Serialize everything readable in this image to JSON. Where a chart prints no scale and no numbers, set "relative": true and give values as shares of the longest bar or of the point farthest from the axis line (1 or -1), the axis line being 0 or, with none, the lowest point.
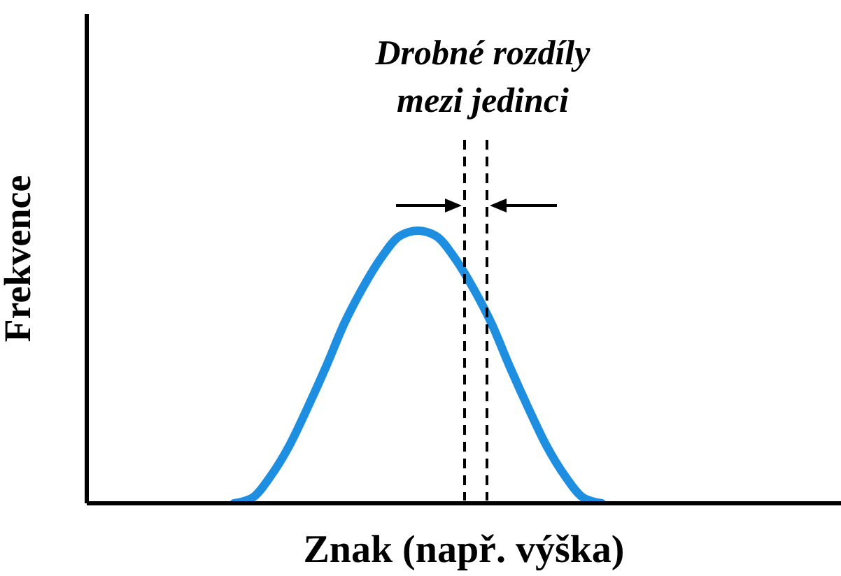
{
  "chart_data": {
    "type": "line",
    "relative": true,
    "xlabel": "Znak (např. výška)",
    "ylabel": "Frekvence",
    "annotations": [
      "Drobné rozdíly mezi jedinci"
    ],
    "categories": [
      null,
      null,
      null,
      null,
      null,
      null,
      null,
      null,
      null,
      null,
      null,
      null,
      null,
      null,
      null,
      null,
      null,
      null,
      null,
      null,
      null,
      null,
      null,
      null,
      null,
      null,
      null,
      null,
      null,
      null,
      null,
      null,
      null,
      null,
      null,
      null,
      null,
      null,
      null,
      null,
      null,
      null
    ],
    "series": [
      {
        "color": "#1e8fe0",
        "values": [
          null,
          null,
          null,
          null,
          null,
          null,
          null,
          null,
          0,
          0.02,
          0.1,
          0.21,
          0.35,
          0.5,
          0.66,
          0.79,
          0.9,
          0.98,
          1,
          0.98,
          0.9,
          0.79,
          0.66,
          0.5,
          0.35,
          0.21,
          0.1,
          0.02,
          0,
          null,
          null,
          null,
          null,
          null,
          null,
          null,
          null,
          null,
          null,
          null,
          null,
          null
        ]
      }
    ],
    "marker": "none",
    "line_style": "solid"
  }
}
